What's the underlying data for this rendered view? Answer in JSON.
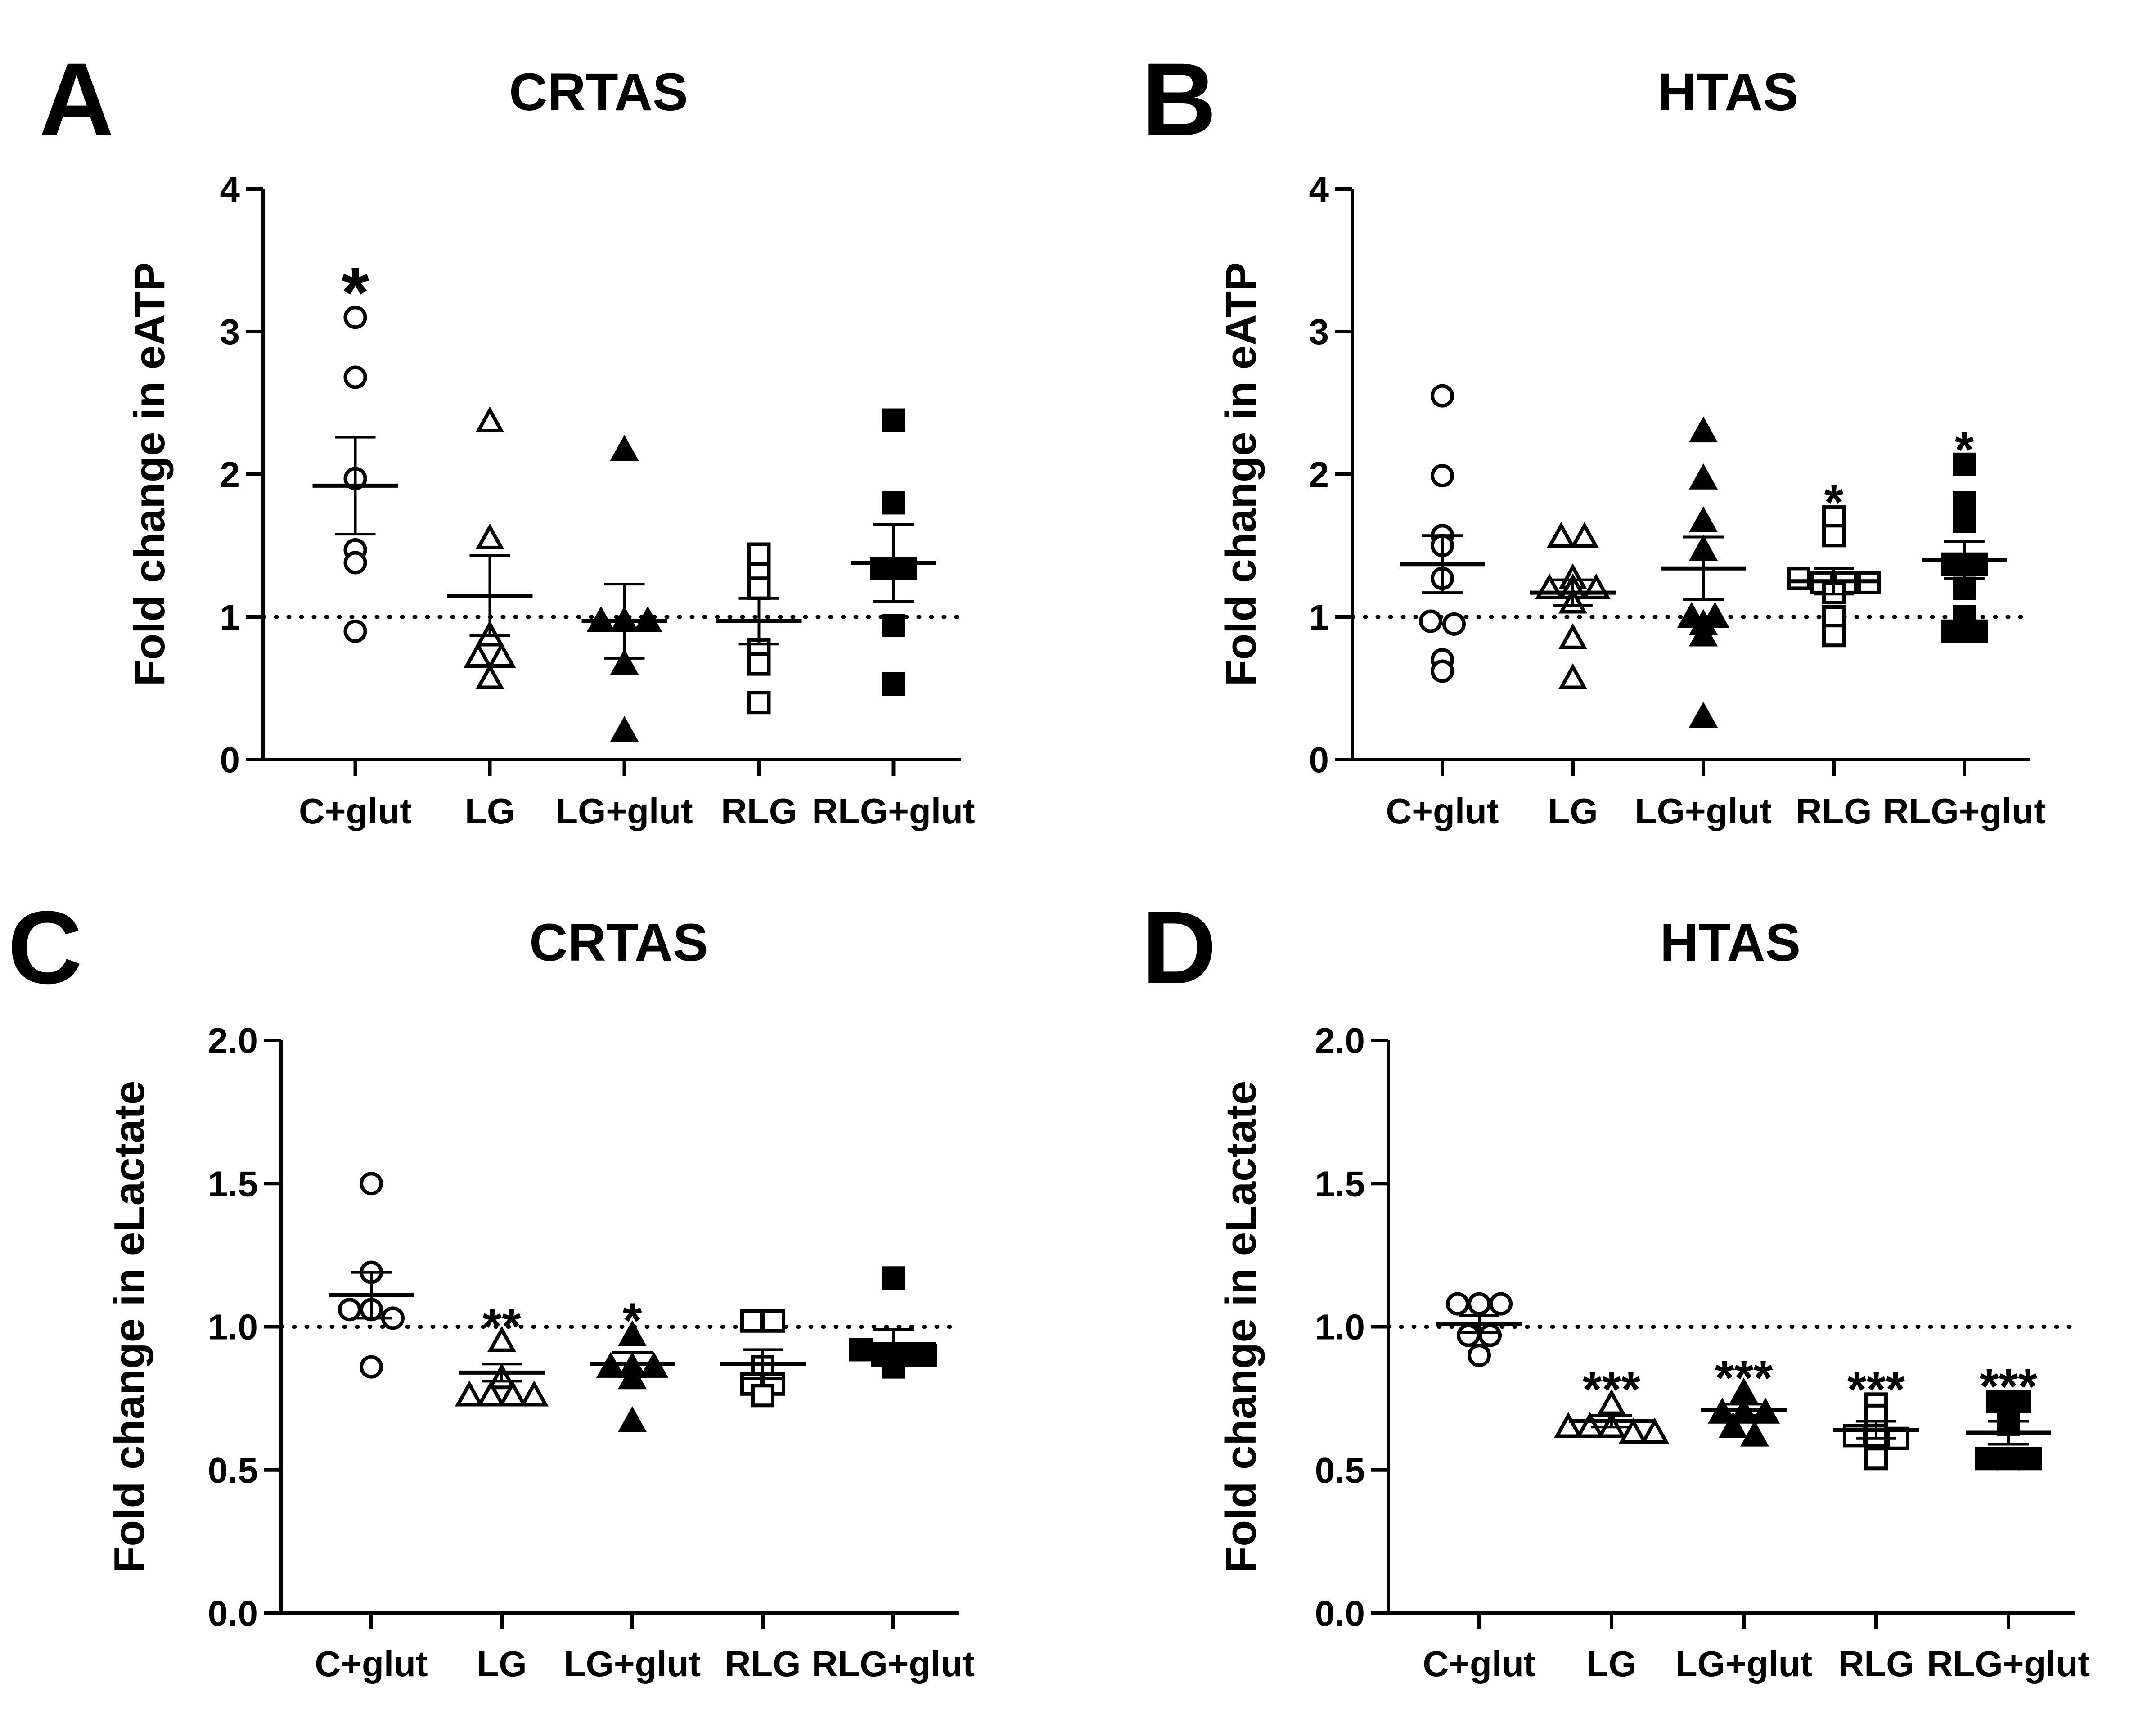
{
  "figure": {
    "panels": [
      "A",
      "B",
      "C",
      "D"
    ]
  },
  "chart_data": [
    {
      "panel": "A",
      "type": "scatter",
      "title": "CRTAS",
      "ylabel": "Fold change in eATP",
      "xlabel": "",
      "ylim": [
        0,
        4
      ],
      "yticks": [
        "0",
        "1",
        "2",
        "3",
        "4"
      ],
      "reference_line": 1,
      "categories": [
        "C+glut",
        "LG",
        "LG+glut",
        "RLG",
        "RLG+glut"
      ],
      "markers": [
        "open-circle",
        "open-triangle",
        "filled-triangle",
        "open-square",
        "filled-square"
      ],
      "points": [
        [
          3.1,
          2.68,
          1.97,
          1.47,
          1.38,
          0.9
        ],
        [
          2.37,
          1.55,
          0.87,
          0.72,
          0.72,
          0.57
        ],
        [
          2.17,
          0.97,
          0.97,
          0.97,
          0.67,
          0.2
        ],
        [
          1.34,
          1.44,
          1.2,
          0.77,
          0.67,
          0.4
        ],
        [
          2.38,
          1.8,
          1.34,
          1.34,
          0.94,
          0.53
        ]
      ],
      "mean": [
        1.92,
        1.15,
        0.97,
        0.97,
        1.38
      ],
      "sem": [
        0.34,
        0.28,
        0.26,
        0.16,
        0.27
      ],
      "significance": [
        "*",
        "",
        "",
        "",
        ""
      ]
    },
    {
      "panel": "B",
      "type": "scatter",
      "title": "HTAS",
      "ylabel": "Fold change in eATP",
      "xlabel": "",
      "ylim": [
        0,
        4
      ],
      "yticks": [
        "0",
        "1",
        "2",
        "3",
        "4"
      ],
      "reference_line": 1,
      "categories": [
        "C+glut",
        "LG",
        "LG+glut",
        "RLG",
        "RLG+glut"
      ],
      "markers": [
        "open-circle",
        "open-triangle",
        "filled-triangle",
        "open-square",
        "filled-square"
      ],
      "points": [
        [
          2.55,
          1.99,
          1.57,
          1.5,
          1.27,
          0.97,
          0.95,
          0.7,
          0.62
        ],
        [
          1.56,
          1.56,
          1.27,
          1.2,
          1.2,
          1.2,
          1.1,
          0.85,
          0.57
        ],
        [
          2.3,
          1.97,
          1.67,
          1.47,
          1.0,
          1.0,
          0.95,
          0.87,
          0.3
        ],
        [
          1.7,
          1.57,
          1.27,
          1.24,
          1.24,
          1.24,
          1.17,
          1.0,
          0.87
        ],
        [
          2.07,
          1.8,
          1.67,
          1.37,
          1.37,
          1.2,
          1.0,
          0.9,
          0.9
        ]
      ],
      "mean": [
        1.37,
        1.17,
        1.34,
        1.25,
        1.4
      ],
      "sem": [
        0.2,
        0.09,
        0.22,
        0.09,
        0.13
      ],
      "significance": [
        "",
        "",
        "",
        "*",
        "*"
      ]
    },
    {
      "panel": "C",
      "type": "scatter",
      "title": "CRTAS",
      "ylabel": "Fold change in eLactate",
      "xlabel": "",
      "ylim": [
        0,
        2
      ],
      "yticks": [
        "0.0",
        "0.5",
        "1.0",
        "1.5",
        "2.0"
      ],
      "reference_line": 1,
      "categories": [
        "C+glut",
        "LG",
        "LG+glut",
        "RLG",
        "RLG+glut"
      ],
      "markers": [
        "open-circle",
        "open-triangle",
        "filled-triangle",
        "open-square",
        "filled-square"
      ],
      "points": [
        [
          1.5,
          1.19,
          1.06,
          1.06,
          1.03,
          0.86
        ],
        [
          0.95,
          0.82,
          0.76,
          0.76,
          0.76,
          0.76
        ],
        [
          0.97,
          0.86,
          0.86,
          0.86,
          0.82,
          0.67
        ],
        [
          1.02,
          1.02,
          0.86,
          0.8,
          0.8,
          0.76
        ],
        [
          1.17,
          0.92,
          0.9,
          0.9,
          0.9,
          0.86
        ]
      ],
      "mean": [
        1.11,
        0.84,
        0.87,
        0.87,
        0.94
      ],
      "sem": [
        0.08,
        0.03,
        0.04,
        0.05,
        0.05
      ],
      "significance": [
        "",
        "**",
        "*",
        "",
        ""
      ]
    },
    {
      "panel": "D",
      "type": "scatter",
      "title": "HTAS",
      "ylabel": "Fold change in eLactate",
      "xlabel": "",
      "ylim": [
        0,
        2
      ],
      "yticks": [
        "0.0",
        "0.5",
        "1.0",
        "1.5",
        "2.0"
      ],
      "reference_line": 1,
      "categories": [
        "C+glut",
        "LG",
        "LG+glut",
        "RLG",
        "RLG+glut"
      ],
      "markers": [
        "open-circle",
        "open-triangle",
        "filled-triangle",
        "open-square",
        "filled-square"
      ],
      "points": [
        [
          1.08,
          1.08,
          1.08,
          0.97,
          0.97,
          0.9
        ],
        [
          0.73,
          0.65,
          0.65,
          0.65,
          0.63,
          0.63
        ],
        [
          0.77,
          0.7,
          0.7,
          0.7,
          0.65,
          0.62
        ],
        [
          0.73,
          0.69,
          0.62,
          0.62,
          0.61,
          0.54
        ],
        [
          0.74,
          0.74,
          0.66,
          0.54,
          0.54,
          0.54
        ]
      ],
      "mean": [
        1.01,
        0.67,
        0.71,
        0.64,
        0.63
      ],
      "sem": [
        0.03,
        0.02,
        0.02,
        0.03,
        0.04
      ],
      "significance": [
        "",
        "***",
        "***",
        "***",
        "***"
      ]
    }
  ]
}
